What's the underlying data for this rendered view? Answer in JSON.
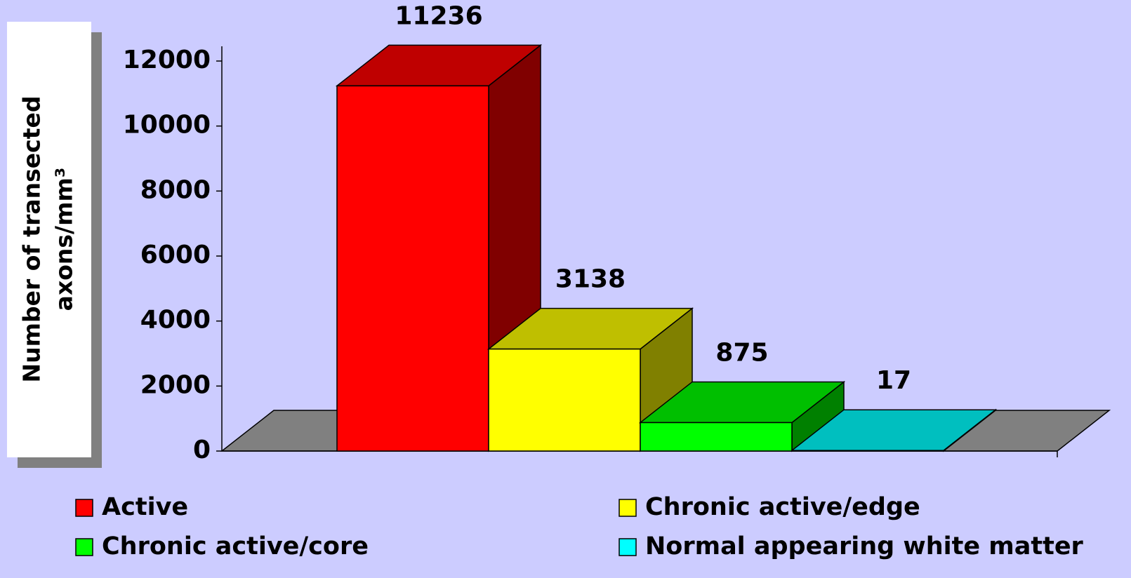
{
  "chart_data": {
    "type": "bar3d",
    "ylabel": [
      "Number of transected",
      "axons/mm³"
    ],
    "ylim": [
      0,
      12000
    ],
    "yticks": [
      0,
      2000,
      4000,
      6000,
      8000,
      10000,
      12000
    ],
    "series": [
      {
        "name": "Active",
        "color": "#ff0000",
        "values": [
          11236
        ]
      },
      {
        "name": "Chronic active/edge",
        "color": "#ffff00",
        "values": [
          3138
        ]
      },
      {
        "name": "Chronic active/core",
        "color": "#00ff00",
        "values": [
          875
        ]
      },
      {
        "name": "Normal appearing white matter",
        "color": "#00ffff",
        "values": [
          17
        ]
      }
    ]
  }
}
